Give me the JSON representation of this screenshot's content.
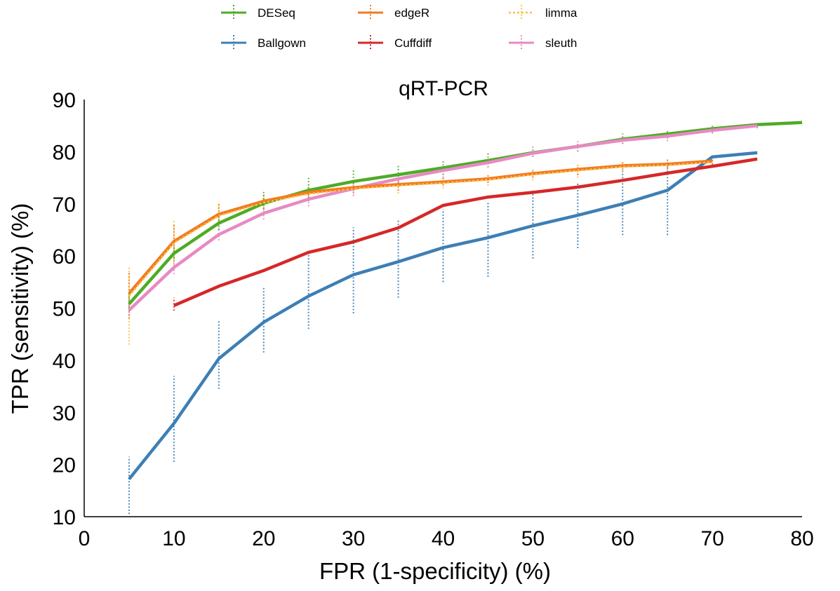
{
  "chart_data": {
    "type": "line",
    "title": "qRT-PCR",
    "xlabel": "FPR (1-specificity) (%)",
    "ylabel": "TPR (sensitivity) (%)",
    "xlim": [
      0,
      80
    ],
    "ylim": [
      10,
      90
    ],
    "xticks": [
      "0",
      "10",
      "20",
      "30",
      "40",
      "50",
      "60",
      "70",
      "80"
    ],
    "yticks": [
      "10",
      "20",
      "30",
      "40",
      "50",
      "60",
      "70",
      "80",
      "90"
    ],
    "grid": false,
    "legend": "top",
    "error_bars": true,
    "series": [
      {
        "name": "DESeq",
        "color": "#4dac26",
        "style": "solid",
        "x": [
          5,
          10,
          15,
          20,
          25,
          30,
          35,
          40,
          45,
          50,
          55,
          60,
          65,
          70,
          75,
          80
        ],
        "y": [
          50.8,
          60.5,
          66.3,
          70.1,
          72.6,
          74.3,
          75.6,
          76.9,
          78.3,
          79.8,
          81.0,
          82.4,
          83.4,
          84.4,
          85.2,
          85.6
        ],
        "err_low": [
          49.5,
          59.5,
          65.0,
          69.0,
          70.5,
          72.5,
          74.0,
          75.5,
          77.0,
          79.0,
          80.0,
          81.5,
          82.5,
          83.5,
          84.5,
          null
        ],
        "err_high": [
          53.0,
          62.0,
          68.0,
          72.5,
          75.0,
          76.5,
          77.5,
          78.5,
          80.0,
          81.0,
          82.0,
          83.5,
          84.0,
          85.0,
          85.5,
          null
        ]
      },
      {
        "name": "edgeR",
        "color": "#f37a20",
        "style": "solid",
        "x": [
          5,
          10,
          15,
          20,
          25,
          30,
          35,
          40,
          45,
          50,
          55,
          60,
          65,
          70
        ],
        "y": [
          52.8,
          62.8,
          68.0,
          70.5,
          72.2,
          73.1,
          73.7,
          74.2,
          74.8,
          75.8,
          76.6,
          77.3,
          77.6,
          78.2
        ],
        "err_low": [
          48.0,
          59.0,
          66.0,
          69.0,
          71.0,
          72.0,
          72.5,
          73.5,
          74.0,
          75.0,
          75.5,
          76.5,
          77.0,
          77.5
        ],
        "err_high": [
          57.0,
          66.0,
          70.0,
          72.0,
          73.5,
          74.0,
          75.0,
          75.0,
          75.5,
          76.5,
          77.5,
          78.0,
          78.5,
          79.0
        ]
      },
      {
        "name": "limma",
        "color": "#f6c342",
        "style": "dotted",
        "x": [
          5,
          10,
          15,
          20,
          25,
          30,
          35,
          40,
          45,
          50,
          55,
          60,
          65,
          70
        ],
        "y": [
          52.3,
          62.5,
          67.7,
          70.2,
          71.9,
          72.9,
          73.5,
          74.0,
          74.6,
          75.6,
          76.4,
          77.1,
          77.4,
          78.0
        ],
        "err_low": [
          43.0,
          58.0,
          65.0,
          68.5,
          70.5,
          71.5,
          72.0,
          73.0,
          73.5,
          74.5,
          75.0,
          76.0,
          76.5,
          77.0
        ],
        "err_high": [
          58.0,
          67.0,
          70.5,
          72.0,
          73.5,
          74.0,
          75.0,
          75.0,
          75.5,
          76.5,
          77.5,
          78.0,
          78.5,
          79.0
        ]
      },
      {
        "name": "Ballgown",
        "color": "#3d7fb5",
        "style": "solid",
        "x": [
          5,
          10,
          15,
          20,
          25,
          30,
          35,
          40,
          45,
          50,
          55,
          60,
          65,
          70,
          75
        ],
        "y": [
          17.2,
          27.9,
          40.3,
          47.3,
          52.3,
          56.4,
          58.9,
          61.6,
          63.5,
          65.8,
          67.8,
          70.0,
          72.6,
          79.0,
          79.8
        ],
        "err_low": [
          10.5,
          20.5,
          34.5,
          41.5,
          46.0,
          49.0,
          52.0,
          55.0,
          56.0,
          59.5,
          61.5,
          64.0,
          64.0,
          null,
          null
        ],
        "err_high": [
          21.5,
          37.0,
          47.5,
          54.0,
          60.5,
          65.5,
          67.0,
          69.0,
          70.5,
          72.5,
          74.0,
          76.5,
          78.0,
          null,
          null
        ]
      },
      {
        "name": "Cuffdiff",
        "color": "#d62728",
        "style": "solid",
        "x": [
          10,
          15,
          20,
          25,
          30,
          35,
          40,
          45,
          50,
          55,
          60,
          65,
          70,
          75
        ],
        "y": [
          50.5,
          54.2,
          57.2,
          60.7,
          62.7,
          65.4,
          69.7,
          71.3,
          72.2,
          73.2,
          74.5,
          75.9,
          77.2,
          78.6
        ],
        "err_low": [
          49.5,
          null,
          null,
          null,
          null,
          null,
          null,
          null,
          null,
          null,
          null,
          null,
          null,
          null
        ],
        "err_high": [
          52.0,
          null,
          null,
          null,
          null,
          null,
          null,
          null,
          null,
          null,
          null,
          null,
          null,
          null
        ]
      },
      {
        "name": "sleuth",
        "color": "#e78ac3",
        "style": "solid",
        "x": [
          5,
          10,
          15,
          20,
          25,
          30,
          35,
          40,
          45,
          50,
          55,
          60,
          65,
          70,
          75
        ],
        "y": [
          49.6,
          57.8,
          64.1,
          68.2,
          70.9,
          72.9,
          74.8,
          76.4,
          77.9,
          79.7,
          81.0,
          82.2,
          83.0,
          84.1,
          85.0
        ],
        "err_low": [
          48.5,
          56.5,
          63.0,
          67.0,
          69.5,
          71.5,
          73.5,
          75.0,
          77.0,
          79.0,
          80.0,
          81.5,
          82.0,
          83.5,
          84.5
        ],
        "err_high": [
          51.0,
          59.5,
          65.5,
          69.5,
          72.0,
          74.0,
          76.0,
          77.5,
          79.0,
          80.5,
          82.0,
          83.0,
          84.0,
          85.0,
          85.5
        ]
      }
    ],
    "legend_order": [
      [
        "DESeq",
        "edgeR",
        "limma"
      ],
      [
        "Ballgown",
        "Cuffdiff",
        "sleuth"
      ]
    ]
  }
}
